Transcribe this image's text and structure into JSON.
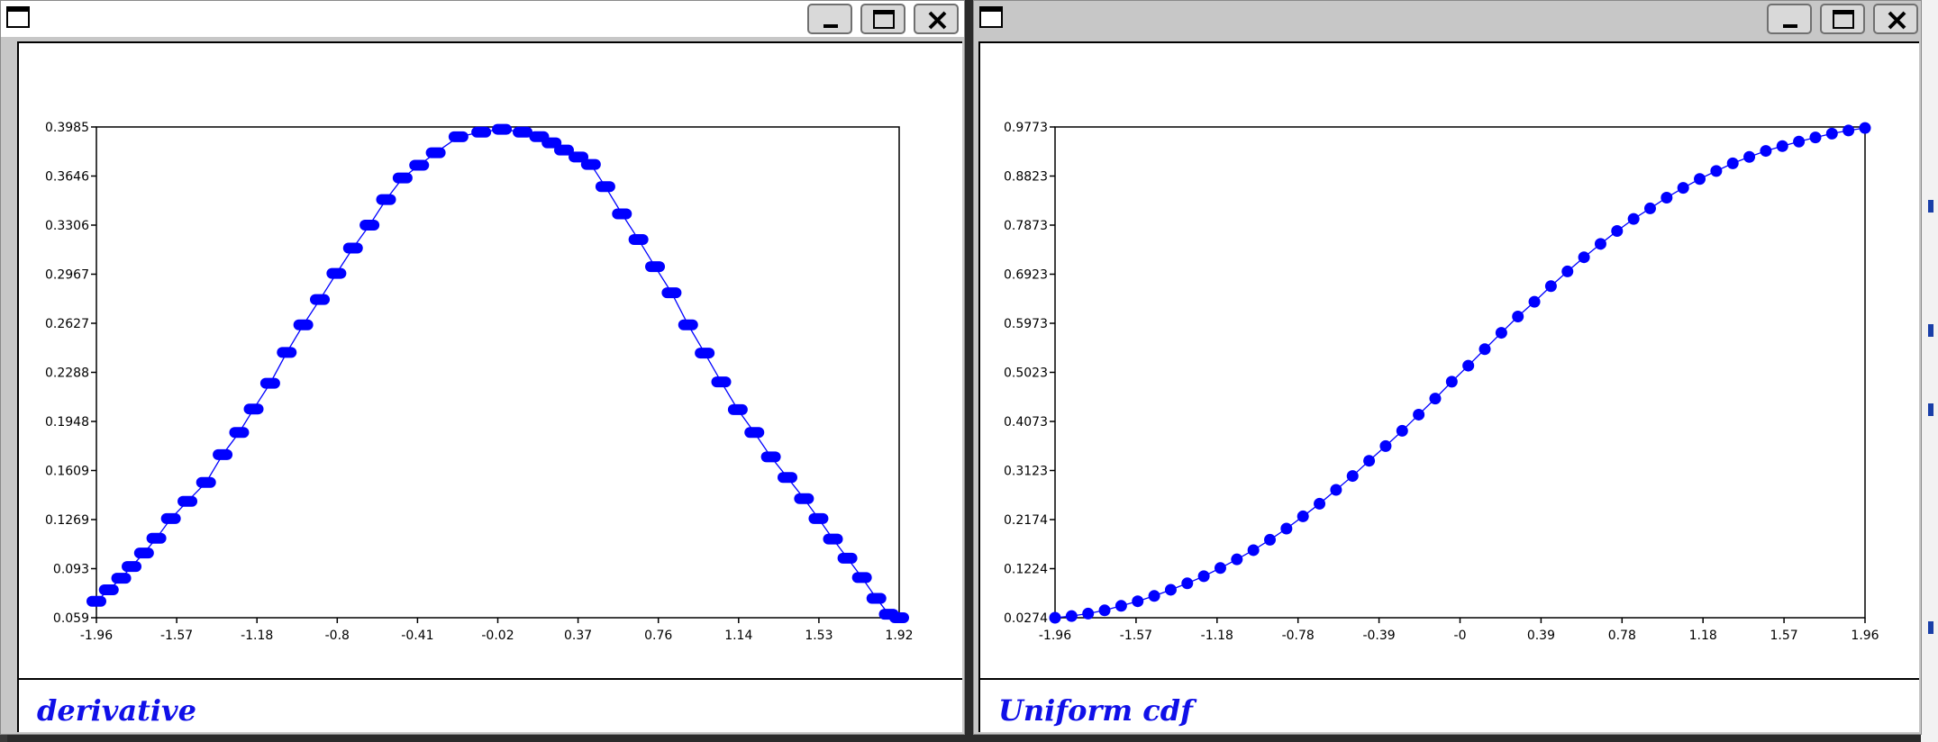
{
  "windows": [
    {
      "caption": "derivative",
      "buttons": [
        "minimize",
        "maximize",
        "close"
      ]
    },
    {
      "caption": "Uniform cdf",
      "buttons": [
        "minimize",
        "maximize",
        "close"
      ]
    }
  ],
  "colors": {
    "series": "#0000ff",
    "caption": "#1010e8",
    "frame": "#000000"
  },
  "chart_data": [
    {
      "type": "scatter",
      "title": "derivative",
      "xlabel": "",
      "ylabel": "",
      "xlim": [
        -1.96,
        1.92
      ],
      "ylim": [
        0.059,
        0.3985
      ],
      "x_ticks": [
        "-1.96",
        "-1.57",
        "-1.18",
        "-0.8",
        "-0.41",
        "-0.02",
        "0.37",
        "0.76",
        "1.14",
        "1.53",
        "1.92"
      ],
      "y_ticks": [
        "0.059",
        "0.093",
        "0.1269",
        "0.1609",
        "0.1948",
        "0.2288",
        "0.2627",
        "0.2967",
        "0.3306",
        "0.3646",
        "0.3985"
      ],
      "grid": false,
      "connected": true,
      "marker": "rounded-bar",
      "series": [
        {
          "points": [
            [
              -1.96,
              0.0704
            ],
            [
              -1.9,
              0.0783
            ],
            [
              -1.84,
              0.0863
            ],
            [
              -1.79,
              0.0944
            ],
            [
              -1.73,
              0.1038
            ],
            [
              -1.67,
              0.114
            ],
            [
              -1.6,
              0.1276
            ],
            [
              -1.52,
              0.1395
            ],
            [
              -1.43,
              0.1526
            ],
            [
              -1.35,
              0.1718
            ],
            [
              -1.27,
              0.1872
            ],
            [
              -1.2,
              0.2034
            ],
            [
              -1.12,
              0.2212
            ],
            [
              -1.04,
              0.2425
            ],
            [
              -0.96,
              0.2616
            ],
            [
              -0.88,
              0.2791
            ],
            [
              -0.8,
              0.2972
            ],
            [
              -0.72,
              0.3147
            ],
            [
              -0.64,
              0.3306
            ],
            [
              -0.56,
              0.3483
            ],
            [
              -0.48,
              0.3632
            ],
            [
              -0.4,
              0.372
            ],
            [
              -0.32,
              0.3807
            ],
            [
              -0.21,
              0.3917
            ],
            [
              -0.1,
              0.3949
            ],
            [
              0.0,
              0.3969
            ],
            [
              0.1,
              0.3949
            ],
            [
              0.18,
              0.3918
            ],
            [
              0.24,
              0.3875
            ],
            [
              0.3,
              0.3825
            ],
            [
              0.37,
              0.3777
            ],
            [
              0.43,
              0.3726
            ],
            [
              0.5,
              0.3572
            ],
            [
              0.58,
              0.3384
            ],
            [
              0.66,
              0.3206
            ],
            [
              0.74,
              0.3019
            ],
            [
              0.82,
              0.2838
            ],
            [
              0.9,
              0.2616
            ],
            [
              0.98,
              0.2421
            ],
            [
              1.06,
              0.2221
            ],
            [
              1.14,
              0.203
            ],
            [
              1.22,
              0.1872
            ],
            [
              1.3,
              0.1703
            ],
            [
              1.38,
              0.156
            ],
            [
              1.46,
              0.1414
            ],
            [
              1.53,
              0.1276
            ],
            [
              1.6,
              0.1134
            ],
            [
              1.67,
              0.1002
            ],
            [
              1.74,
              0.0868
            ],
            [
              1.81,
              0.0724
            ],
            [
              1.87,
              0.0614
            ],
            [
              1.92,
              0.059
            ]
          ]
        }
      ]
    },
    {
      "type": "scatter",
      "title": "Uniform cdf",
      "xlabel": "",
      "ylabel": "",
      "xlim": [
        -1.96,
        1.96
      ],
      "ylim": [
        0.0274,
        0.9773
      ],
      "x_ticks": [
        "-1.96",
        "-1.57",
        "-1.18",
        "-0.78",
        "-0.39",
        "-0",
        "0.39",
        "0.78",
        "1.18",
        "1.57",
        "1.96"
      ],
      "y_ticks": [
        "0.0274",
        "0.1224",
        "0.2174",
        "0.3123",
        "0.4073",
        "0.5023",
        "0.5973",
        "0.6923",
        "0.7873",
        "0.8823",
        "0.9773"
      ],
      "grid": false,
      "connected": true,
      "marker": "dot",
      "series": [
        {
          "points": [
            [
              -1.96,
              0.0274
            ],
            [
              -1.88,
              0.0306
            ],
            [
              -1.8,
              0.0354
            ],
            [
              -1.72,
              0.0417
            ],
            [
              -1.64,
              0.0504
            ],
            [
              -1.56,
              0.0593
            ],
            [
              -1.48,
              0.0696
            ],
            [
              -1.4,
              0.0815
            ],
            [
              -1.32,
              0.094
            ],
            [
              -1.24,
              0.1078
            ],
            [
              -1.16,
              0.1236
            ],
            [
              -1.08,
              0.1404
            ],
            [
              -1.0,
              0.1582
            ],
            [
              -0.92,
              0.1783
            ],
            [
              -0.84,
              0.1999
            ],
            [
              -0.76,
              0.2236
            ],
            [
              -0.68,
              0.248
            ],
            [
              -0.6,
              0.2749
            ],
            [
              -0.52,
              0.3018
            ],
            [
              -0.44,
              0.3312
            ],
            [
              -0.36,
              0.3597
            ],
            [
              -0.28,
              0.3892
            ],
            [
              -0.2,
              0.4205
            ],
            [
              -0.12,
              0.4516
            ],
            [
              -0.04,
              0.4843
            ],
            [
              0.04,
              0.5153
            ],
            [
              0.12,
              0.5472
            ],
            [
              0.2,
              0.5789
            ],
            [
              0.28,
              0.6104
            ],
            [
              0.36,
              0.639
            ],
            [
              0.44,
              0.6692
            ],
            [
              0.52,
              0.6977
            ],
            [
              0.6,
              0.7251
            ],
            [
              0.68,
              0.751
            ],
            [
              0.76,
              0.776
            ],
            [
              0.84,
              0.7993
            ],
            [
              0.92,
              0.8197
            ],
            [
              1.0,
              0.8405
            ],
            [
              1.08,
              0.8594
            ],
            [
              1.16,
              0.8767
            ],
            [
              1.24,
              0.8921
            ],
            [
              1.32,
              0.9069
            ],
            [
              1.4,
              0.9193
            ],
            [
              1.48,
              0.931
            ],
            [
              1.56,
              0.9403
            ],
            [
              1.64,
              0.949
            ],
            [
              1.72,
              0.957
            ],
            [
              1.8,
              0.9644
            ],
            [
              1.88,
              0.9706
            ],
            [
              1.96,
              0.9753
            ]
          ]
        }
      ]
    }
  ]
}
